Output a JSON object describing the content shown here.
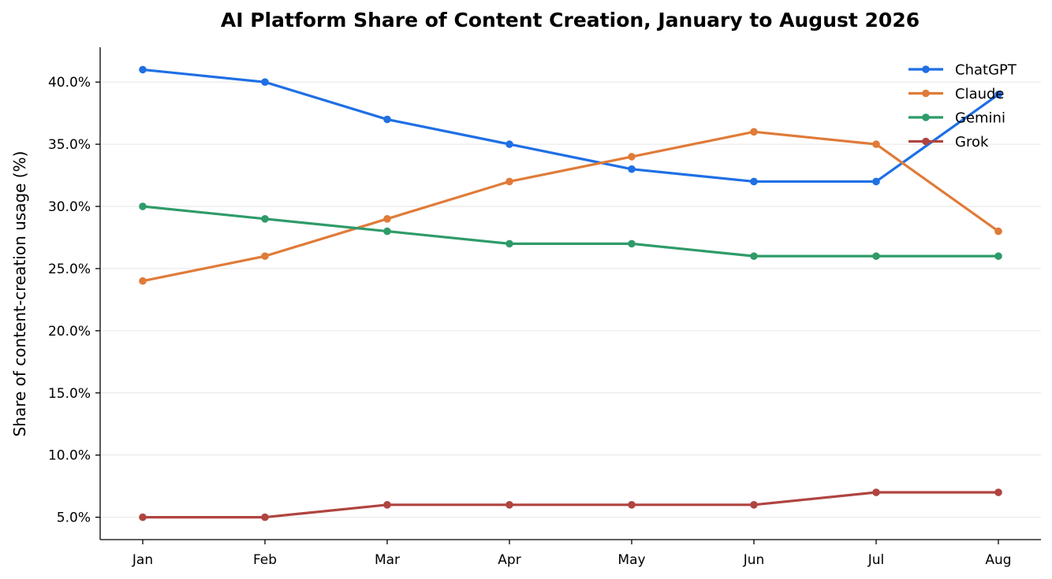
{
  "chart_data": {
    "type": "line",
    "title": "AI Platform Share of Content Creation, January to August 2026",
    "xlabel": "",
    "ylabel": "Share of content-creation usage (%)",
    "categories": [
      "Jan",
      "Feb",
      "Mar",
      "Apr",
      "May",
      "Jun",
      "Jul",
      "Aug"
    ],
    "ylim": [
      3.2,
      42.8
    ],
    "yticks": [
      5,
      10,
      15,
      20,
      25,
      30,
      35,
      40
    ],
    "ytick_labels": [
      "5.0%",
      "10.0%",
      "15.0%",
      "20.0%",
      "25.0%",
      "30.0%",
      "35.0%",
      "40.0%"
    ],
    "grid": "horizontal",
    "legend": "top-right",
    "series": [
      {
        "name": "ChatGPT",
        "color": "#1f6fe5",
        "values": [
          41,
          40,
          37,
          35,
          33,
          32,
          32,
          39
        ]
      },
      {
        "name": "Claude",
        "color": "#e07b39",
        "values": [
          24,
          26,
          29,
          32,
          34,
          36,
          35,
          28
        ]
      },
      {
        "name": "Gemini",
        "color": "#2e9b69",
        "values": [
          30,
          29,
          28,
          27,
          27,
          26,
          26,
          26
        ]
      },
      {
        "name": "Grok",
        "color": "#b04440",
        "values": [
          5,
          5,
          6,
          6,
          6,
          6,
          7,
          7
        ]
      }
    ]
  }
}
